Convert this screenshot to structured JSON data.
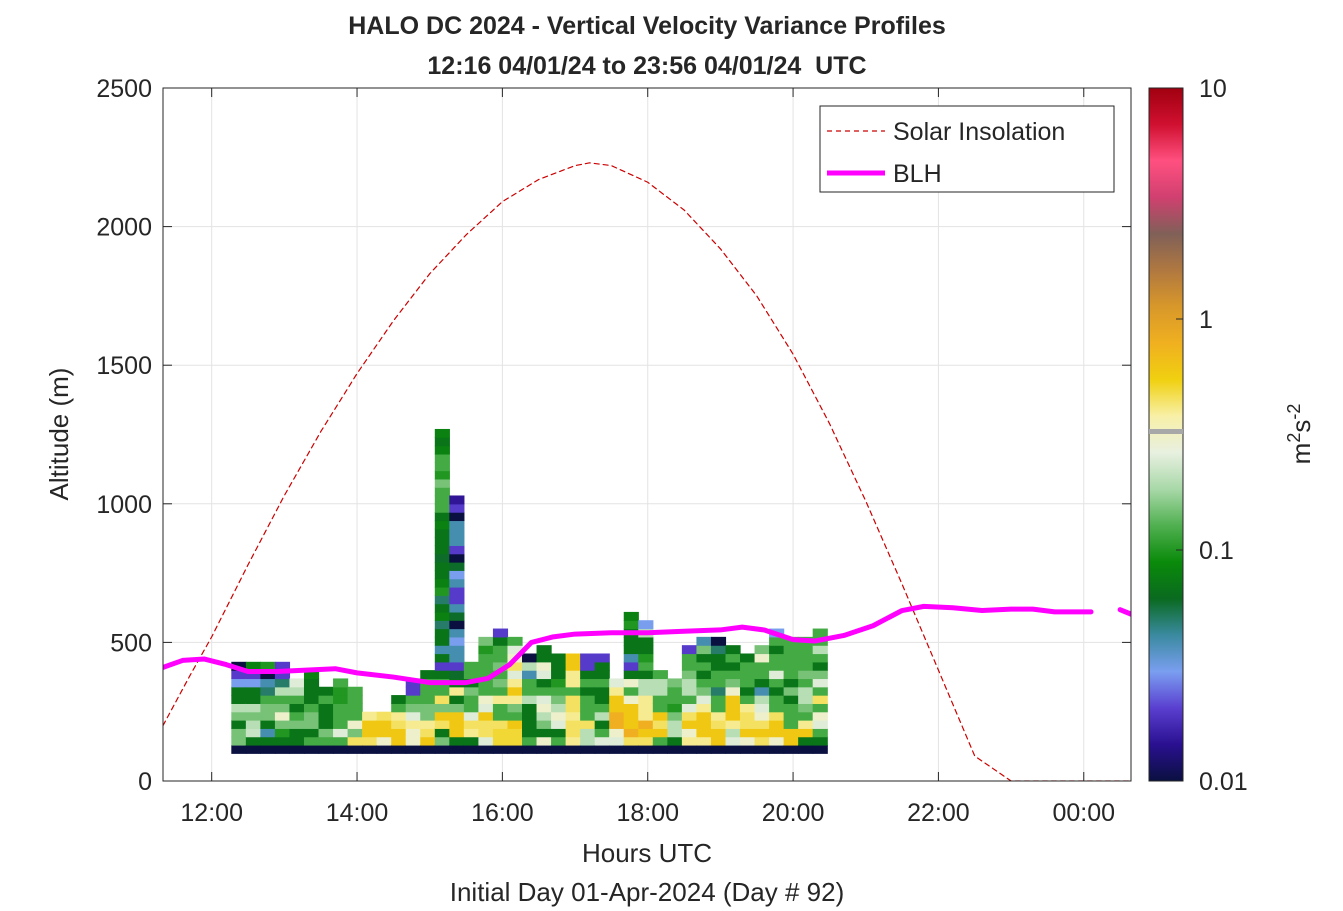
{
  "chart_data": {
    "type": "heatmap",
    "title": "HALO DC 2024 - Vertical Velocity Variance Profiles",
    "subtitle": "12:16 04/01/24 to 23:56 04/01/24  UTC",
    "xlabel": "Hours UTC",
    "xlabel2": "Initial Day 01-Apr-2024 (Day # 92)",
    "ylabel": "Altitude (m)",
    "xlim": [
      11.33,
      24.65
    ],
    "ylim": [
      0,
      2500
    ],
    "x_ticks": [
      12,
      14,
      16,
      18,
      20,
      22,
      24
    ],
    "x_tick_labels": [
      "12:00",
      "14:00",
      "16:00",
      "18:00",
      "20:00",
      "22:00",
      "00:00"
    ],
    "y_ticks": [
      0,
      500,
      1000,
      1500,
      2000,
      2500
    ],
    "y_tick_labels": [
      "0",
      "500",
      "1000",
      "1500",
      "2000",
      "2500"
    ],
    "grid": true,
    "legend_position": "top-right",
    "colorbar": {
      "label": "m²s⁻²",
      "scale": "log",
      "range": [
        0.01,
        10
      ],
      "tick_values": [
        0.01,
        0.1,
        1,
        10
      ],
      "tick_labels": [
        "0.01",
        "0.1",
        "1",
        "10"
      ],
      "colors": [
        "#0a1040",
        "#2a1090",
        "#5a3fd0",
        "#7a9ef0",
        "#3a8aa0",
        "#0a6a20",
        "#0a8a0a",
        "#50b050",
        "#a8d8a8",
        "#e8f0e0",
        "#f8f0a8",
        "#f0d010",
        "#f0b020",
        "#d8982a",
        "#b07840",
        "#806058",
        "#d04070",
        "#ff5080",
        "#d01030",
        "#a00010"
      ]
    },
    "heatmap": {
      "x0": 12.27,
      "dt": 0.2,
      "z0": 100,
      "dz": 30,
      "columns": [
        [
          -2,
          0.15,
          0.15,
          0.07,
          0.15,
          0.2,
          0.07,
          0.07,
          0.03,
          0.02,
          0.01
        ],
        [
          -2,
          0.07,
          0.22,
          0.2,
          0.15,
          0.2,
          0.07,
          0.07,
          0.03,
          0.02,
          0.08
        ],
        [
          -2,
          0.07,
          0.04,
          0.07,
          0.15,
          0.15,
          0.12,
          0.05,
          0.04,
          0.01,
          0.1
        ],
        [
          -2,
          0.07,
          0.1,
          0.15,
          0.3,
          0.15,
          0.12,
          0.2,
          0.05,
          0.02,
          0.02
        ],
        [
          -2,
          0.07,
          0.07,
          0.15,
          0.12,
          0.07,
          0.12,
          0.2,
          0.25
        ],
        [
          -2,
          0.12,
          0.07,
          0.15,
          0.15,
          0.12,
          0.07,
          0.07,
          0.07,
          0.08
        ],
        [
          -2,
          0.12,
          0.15,
          0.07,
          0.07,
          0.07,
          0.12,
          0.07
        ],
        [
          -2,
          0.12,
          0.25,
          0.12,
          0.12,
          0.12,
          0.1,
          0.1,
          0.12
        ],
        [
          -2,
          0.45,
          0.15,
          0.3,
          0.12,
          0.12,
          0.12,
          0.12
        ],
        [
          -2,
          0.45,
          0.6,
          0.6,
          0.4
        ],
        [
          -2,
          0.3,
          0.6,
          0.6,
          0.45
        ],
        [
          -2,
          0.6,
          0.6,
          0.45,
          0.4,
          0.12,
          0.07
        ],
        [
          -2,
          0.3,
          0.3,
          0.4,
          0.25,
          0.15,
          0.12,
          0.02,
          0.02
        ],
        [
          -2,
          0.6,
          0.45,
          0.4,
          0.15,
          0.15,
          0.12,
          0.12,
          0.12,
          0.07
        ],
        [
          -2,
          0.15,
          0.07,
          0.45,
          0.6,
          0.15,
          0.45,
          0.12,
          0.12,
          0.07,
          0.02,
          0.07,
          0.04,
          0.07,
          0.07,
          0.05,
          0.08,
          0.07,
          0.05,
          0.1,
          0.08,
          0.07,
          0.07,
          0.06,
          0.07,
          0.07,
          0.07,
          0.08,
          0.07,
          0.12,
          0.12,
          0.12,
          0.15,
          0.1,
          0.12,
          0.12,
          0.08,
          0.07,
          0.08
        ],
        [
          -2,
          0.07,
          0.6,
          0.6,
          0.6,
          0.15,
          0.07,
          0.4,
          0.07,
          0.06,
          0.02,
          0.04,
          0.04,
          0.03,
          0.04,
          0.01,
          0.06,
          0.04,
          0.02,
          0.02,
          0.04,
          0.03,
          0.06,
          0.01,
          0.02,
          0.04,
          0.04,
          0.04,
          0.01,
          0.02,
          0.015
        ],
        [
          -2,
          0.07,
          0.4,
          0.45,
          0.25,
          0.12,
          0.12,
          0.15,
          0.07,
          0.12,
          0.12
        ],
        [
          -2,
          0.25,
          0.45,
          0.45,
          0.6,
          0.25,
          0.3,
          0.12,
          0.12,
          0.12,
          0.12,
          0.12,
          0.1,
          0.15
        ],
        [
          -2,
          0.5,
          0.5,
          0.45,
          0.12,
          0.12,
          0.4,
          0.12,
          0.15,
          0.12,
          0.15,
          0.12,
          0.12,
          0.07,
          0.02
        ],
        [
          -2,
          0.5,
          0.5,
          0.6,
          0.12,
          0.15,
          0.4,
          0.6,
          0.4,
          0.25,
          0.45,
          0.3,
          0.25,
          0.12
        ],
        [
          -2,
          0.12,
          0.07,
          0.07,
          0.07,
          0.07,
          0.2,
          0.12,
          0.12,
          0.04,
          0.2,
          0.01
        ],
        [
          -2,
          0.3,
          0.07,
          0.15,
          0.2,
          0.3,
          0.25,
          0.12,
          0.07,
          0.25,
          0.3,
          0.07,
          0.07
        ],
        [
          -2,
          0.12,
          0.07,
          0.25,
          0.3,
          0.2,
          0.15,
          0.12,
          0.1,
          0.07,
          0.07,
          0.07
        ],
        [
          -2,
          0.4,
          0.45,
          0.45,
          0.4,
          0.45,
          0.45,
          0.12,
          0.4,
          0.4,
          0.6,
          0.6
        ],
        [
          -2,
          0.2,
          0.2,
          0.45,
          0.12,
          0.12,
          0.12,
          0.07,
          0.12,
          0.07,
          0.02,
          0.02
        ],
        [
          -2,
          0.25,
          0.12,
          0.07,
          0.2,
          0.12,
          0.07,
          0.07,
          0.12,
          0.07,
          0.07,
          0.02
        ],
        [
          -2,
          0.25,
          0.3,
          0.8,
          0.8,
          0.6,
          0.6,
          0.4,
          0.25
        ],
        [
          -2,
          0.45,
          0.8,
          0.6,
          0.6,
          0.6,
          0.3,
          0.12,
          0.3,
          0.07,
          0.02,
          0.04,
          0.07,
          0.07,
          0.07,
          0.1,
          0.08
        ],
        [
          -2,
          0.45,
          0.6,
          0.8,
          0.4,
          0.4,
          0.4,
          0.2,
          0.2,
          0.07,
          0.12,
          0.1,
          0.07,
          0.07,
          0.2,
          0.03
        ],
        [
          -2,
          0.12,
          0.6,
          0.45,
          0.6,
          0.12,
          0.12,
          0.2,
          0.2,
          0.12
        ],
        [
          -2,
          0.07,
          0.2,
          0.2,
          0.15,
          0.1,
          0.12,
          0.12,
          0.15
        ],
        [
          -2,
          0.4,
          0.3,
          0.6,
          0.45,
          0.25,
          0.12,
          0.2,
          0.2,
          0.15,
          0.12,
          0.12,
          0.02
        ],
        [
          -2,
          0.4,
          0.6,
          0.6,
          0.6,
          0.4,
          0.25,
          0.15,
          0.12,
          0.07,
          0.12,
          0.07,
          0.15,
          0.04
        ],
        [
          -2,
          0.6,
          0.6,
          0.45,
          0.4,
          0.12,
          0.12,
          0.05,
          0.12,
          0.12,
          0.07,
          0.07,
          0.05,
          0.01
        ],
        [
          -2,
          0.25,
          0.2,
          0.4,
          0.6,
          0.6,
          0.6,
          0.3,
          0.15,
          0.12,
          0.07,
          0.12,
          0.07
        ],
        [
          -2,
          0.3,
          0.6,
          0.45,
          0.45,
          0.4,
          0.12,
          0.07,
          0.12,
          0.12,
          0.12,
          0.07
        ],
        [
          -2,
          0.45,
          0.6,
          0.45,
          0.3,
          0.25,
          0.2,
          0.04,
          0.07,
          0.12,
          0.12,
          0.3,
          0.15
        ],
        [
          -2,
          0.3,
          0.6,
          0.6,
          0.45,
          0.12,
          0.12,
          0.07,
          0.12,
          0.25,
          0.12,
          0.12,
          0.07,
          0.12,
          0.03
        ],
        [
          -2,
          0.6,
          0.6,
          0.12,
          0.12,
          0.12,
          0.07,
          0.15,
          0.07,
          0.12,
          0.12,
          0.12,
          0.12,
          0.12
        ],
        [
          -2,
          0.07,
          0.6,
          0.4,
          0.12,
          0.15,
          0.2,
          0.2,
          0.12,
          0.15,
          0.12,
          0.12,
          0.12,
          0.12
        ],
        [
          -2,
          0.07,
          0.12,
          0.25,
          0.3,
          0.12,
          0.45,
          0.12,
          0.25,
          0.15,
          0.07,
          0.12,
          0.2,
          0.12,
          0.12
        ]
      ]
    },
    "series": [
      {
        "name": "Solar Insolation",
        "style": "dashed",
        "color": "#cc0000",
        "x": [
          11.33,
          11.7,
          12,
          12.5,
          13,
          13.5,
          14,
          14.5,
          15,
          15.5,
          16,
          16.5,
          17,
          17.2,
          17.5,
          18,
          18.5,
          19,
          19.5,
          20,
          20.5,
          21,
          21.5,
          22,
          22.5,
          23,
          23.5,
          23.8,
          24.65
        ],
        "y": [
          200,
          380,
          520,
          780,
          1030,
          1260,
          1470,
          1660,
          1830,
          1970,
          2090,
          2170,
          2220,
          2230,
          2220,
          2160,
          2060,
          1920,
          1750,
          1540,
          1290,
          1010,
          710,
          400,
          90,
          0,
          0,
          0,
          0
        ]
      },
      {
        "name": "BLH",
        "style": "solid",
        "color": "#ff00ff",
        "x": [
          11.33,
          11.6,
          11.9,
          12.2,
          12.5,
          12.9,
          13.3,
          13.7,
          14,
          14.5,
          15,
          15.5,
          15.8,
          16.1,
          16.4,
          16.7,
          17,
          17.5,
          18,
          18.5,
          19,
          19.3,
          19.6,
          20,
          20.3,
          20.7,
          21.1,
          21.5,
          21.8,
          22.2,
          22.6,
          23,
          23.3,
          23.6,
          24,
          24.1
        ],
        "y": [
          410,
          435,
          440,
          420,
          395,
          395,
          400,
          405,
          390,
          375,
          355,
          355,
          370,
          420,
          500,
          520,
          530,
          535,
          535,
          540,
          545,
          555,
          545,
          510,
          505,
          525,
          560,
          615,
          630,
          625,
          615,
          620,
          620,
          610,
          610,
          610
        ]
      },
      {
        "name": "",
        "style": "solid",
        "color": "#ff00ff",
        "x": [
          24.5,
          24.65
        ],
        "y": [
          618,
          602
        ]
      }
    ]
  }
}
